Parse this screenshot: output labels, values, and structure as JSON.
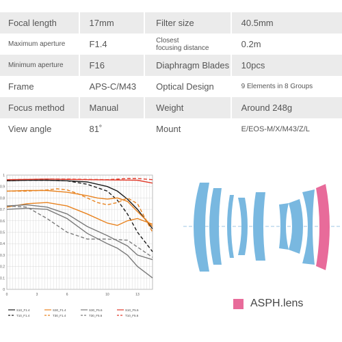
{
  "specs": [
    {
      "label": "Focal length",
      "value": "17mm",
      "label2": "Filter size",
      "value2": "40.5mm"
    },
    {
      "label": "Maximum aperture",
      "value": "F1.4",
      "label2_line1": "Closest",
      "label2_line2": "focusing distance",
      "value2": "0.2m"
    },
    {
      "label": "Minimum aperture",
      "value": "F16",
      "label2": "Diaphragm Blades",
      "value2": "10pcs"
    },
    {
      "label": "Frame",
      "value": "APS-C/M43",
      "label2": "Optical Design",
      "value2": "9 Elements in 8 Groups"
    },
    {
      "label": "Focus method",
      "value": "Manual",
      "label2": "Weight",
      "value2": "Around 248g"
    },
    {
      "label": "View angle",
      "value": "81˚",
      "label2": "Mount",
      "value2": "E/EOS-M/X/M43/Z/L"
    }
  ],
  "legend": {
    "asph_label": "ASPH.lens",
    "asph_color": "#e86b9a",
    "element_color": "#79b8e0"
  },
  "chart_data": {
    "type": "line",
    "title": "",
    "xlabel": "",
    "ylabel": "",
    "xlim": [
      0,
      14.5
    ],
    "ylim": [
      0,
      1.0
    ],
    "xticks": [
      0,
      3,
      6,
      10,
      13
    ],
    "yticks": [
      0,
      0.1,
      0.2,
      0.3,
      0.4,
      0.5,
      0.6,
      0.7,
      0.8,
      0.9,
      1.0
    ],
    "ytick_labels": [
      "0",
      "0.1",
      "0.2",
      "0.3",
      "0.4",
      "0.5",
      "0.6",
      "0.7",
      "0.8",
      "0.9",
      "1"
    ],
    "grid": true,
    "series": [
      {
        "name": "S10_F1.4",
        "color": "#1a1a1a",
        "dash": false,
        "x": [
          0,
          2,
          4,
          6,
          8,
          10,
          11,
          12,
          13,
          14.5
        ],
        "y": [
          0.95,
          0.955,
          0.955,
          0.95,
          0.94,
          0.9,
          0.86,
          0.79,
          0.7,
          0.53
        ]
      },
      {
        "name": "T10_F1.4",
        "color": "#1a1a1a",
        "dash": true,
        "x": [
          0,
          2,
          4,
          6,
          8,
          10,
          11,
          12,
          13,
          14.5
        ],
        "y": [
          0.95,
          0.955,
          0.955,
          0.95,
          0.92,
          0.86,
          0.78,
          0.66,
          0.5,
          0.33
        ]
      },
      {
        "name": "S30_F1.4",
        "color": "#e8821e",
        "dash": false,
        "x": [
          0,
          2,
          4,
          6,
          8,
          9,
          10,
          11,
          12,
          13,
          14.5
        ],
        "y": [
          0.86,
          0.865,
          0.865,
          0.85,
          0.82,
          0.8,
          0.79,
          0.8,
          0.77,
          0.68,
          0.55
        ]
      },
      {
        "name": "T30_F1.4",
        "color": "#e8821e",
        "dash": true,
        "x": [
          0,
          2,
          4,
          5,
          6,
          7,
          8,
          9,
          10,
          11,
          12,
          13,
          14.5
        ],
        "y": [
          0.86,
          0.86,
          0.87,
          0.88,
          0.87,
          0.84,
          0.8,
          0.76,
          0.74,
          0.76,
          0.8,
          0.75,
          0.5
        ]
      },
      {
        "name": "S30_F1.4b",
        "color": "#e8821e",
        "dash": false,
        "x": [
          0,
          2,
          4,
          6,
          8,
          10,
          11,
          12,
          13,
          14.5
        ],
        "y": [
          0.72,
          0.75,
          0.76,
          0.73,
          0.66,
          0.58,
          0.56,
          0.6,
          0.62,
          0.57
        ]
      },
      {
        "name": "S30_F5.6",
        "color": "#7a7a7a",
        "dash": false,
        "x": [
          0,
          2,
          4,
          6,
          8,
          10,
          12,
          13,
          14.5
        ],
        "y": [
          0.73,
          0.74,
          0.72,
          0.66,
          0.55,
          0.47,
          0.38,
          0.3,
          0.26
        ]
      },
      {
        "name": "T30_F5.6",
        "color": "#7a7a7a",
        "dash": true,
        "x": [
          0,
          2,
          4,
          6,
          8,
          10,
          12,
          13,
          14.5
        ],
        "y": [
          0.73,
          0.72,
          0.62,
          0.5,
          0.44,
          0.44,
          0.43,
          0.37,
          0.28
        ]
      },
      {
        "name": "S10_F5.6",
        "color": "#7a7a7a",
        "dash": false,
        "x": [
          0,
          2,
          4,
          6,
          8,
          10,
          11,
          12,
          13,
          14.5
        ],
        "y": [
          0.7,
          0.71,
          0.7,
          0.62,
          0.49,
          0.4,
          0.36,
          0.3,
          0.2,
          0.1
        ]
      },
      {
        "name": "S10_F5.6r",
        "color": "#e03a2a",
        "dash": false,
        "x": [
          0,
          2,
          4,
          6,
          8,
          10,
          12,
          13,
          14.5
        ],
        "y": [
          0.96,
          0.962,
          0.965,
          0.962,
          0.96,
          0.958,
          0.956,
          0.955,
          0.93
        ]
      },
      {
        "name": "T10_F5.6r",
        "color": "#e03a2a",
        "dash": true,
        "x": [
          0,
          2,
          4,
          6,
          8,
          10,
          12,
          13,
          14.5
        ],
        "y": [
          0.96,
          0.962,
          0.965,
          0.965,
          0.962,
          0.96,
          0.97,
          0.97,
          0.96
        ]
      }
    ],
    "legend_items": [
      {
        "label": "S10_F1.4",
        "color": "#1a1a1a",
        "dash": false
      },
      {
        "label": "S30_F1.4",
        "color": "#e8821e",
        "dash": false
      },
      {
        "label": "S30_F5.6",
        "color": "#7a7a7a",
        "dash": false
      },
      {
        "label": "S10_F5.6",
        "color": "#e03a2a",
        "dash": false
      },
      {
        "label": "T10_F1.4",
        "color": "#1a1a1a",
        "dash": true
      },
      {
        "label": "T30_F1.4",
        "color": "#e8821e",
        "dash": true
      },
      {
        "label": "T30_F5.6",
        "color": "#7a7a7a",
        "dash": true
      },
      {
        "label": "T10_F5.6",
        "color": "#e03a2a",
        "dash": true
      }
    ]
  }
}
